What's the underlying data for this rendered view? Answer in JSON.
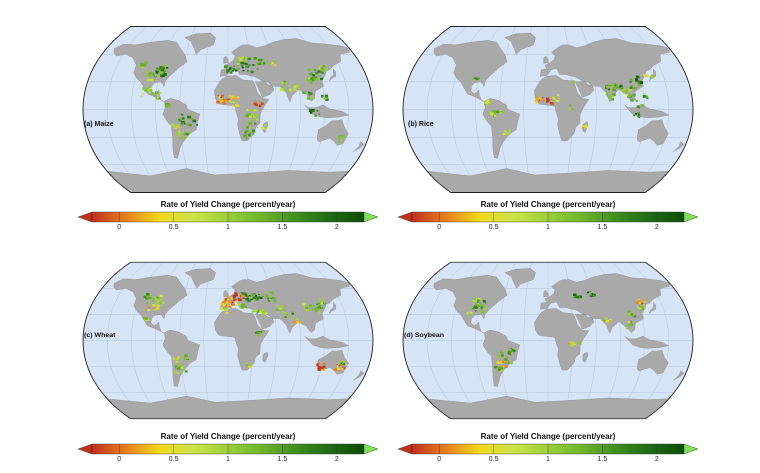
{
  "panels": [
    {
      "label": "(a) Maize",
      "crop": "maize"
    },
    {
      "label": "(b) Rice",
      "crop": "rice"
    },
    {
      "label": "(c) Wheat",
      "crop": "wheat"
    },
    {
      "label": "(d) Soybean",
      "crop": "soybean"
    }
  ],
  "colorbar": {
    "title": "Rate of Yield Change (percent/year)",
    "ticks": [
      "0",
      "0.5",
      "1",
      "1.5",
      "2"
    ],
    "tick_values": [
      0,
      0.5,
      1,
      1.5,
      2
    ],
    "range": [
      -0.25,
      2.25
    ],
    "stops": [
      "#c0311c",
      "#e6801e",
      "#f2d91a",
      "#c9e34a",
      "#9dd03a",
      "#6db52a",
      "#3f8e1f",
      "#1f6b12",
      "#0d4d08"
    ],
    "over_color": "#7fe05a",
    "under_color": "#c0311c"
  },
  "colors": {
    "ocean": "#d6e4f5",
    "land": "#a9a9a9",
    "grid": "#8fa6c4",
    "outline": "#222222"
  }
}
